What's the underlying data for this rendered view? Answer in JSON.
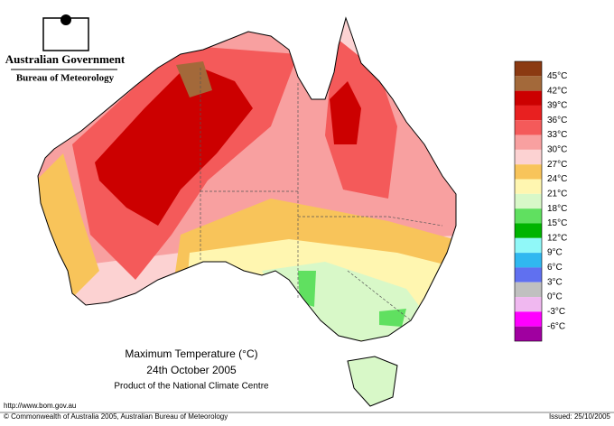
{
  "header": {
    "government": "Australian Government",
    "agency": "Bureau of Meteorology"
  },
  "map": {
    "title": "Maximum Temperature (°C)",
    "date": "24th October 2005",
    "product": "Product of the National Climate Centre"
  },
  "legend": {
    "colors": [
      "#8b3a12",
      "#a3693a",
      "#cc0000",
      "#e82020",
      "#f45a5a",
      "#f8a0a0",
      "#fcd2d2",
      "#f8c45a",
      "#fff6b0",
      "#d8f8c8",
      "#60e060",
      "#00b400",
      "#90f8f8",
      "#30b8f0",
      "#6070f0",
      "#c0c0c0",
      "#f0b8f0",
      "#ff00ff",
      "#a000a0"
    ],
    "labels": [
      "45°C",
      "42°C",
      "39°C",
      "36°C",
      "33°C",
      "30°C",
      "27°C",
      "24°C",
      "21°C",
      "18°C",
      "15°C",
      "12°C",
      "9°C",
      "6°C",
      "3°C",
      "0°C",
      "-3°C",
      "-6°C"
    ]
  },
  "footer": {
    "url": "http://www.bom.gov.au",
    "copyright": "© Commonwealth of Australia 2005, Australian Bureau of Meteorology",
    "issued": "Issued: 25/10/2005"
  }
}
